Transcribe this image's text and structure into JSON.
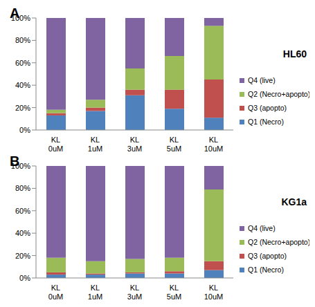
{
  "chart_data": [
    {
      "type": "bar",
      "stacked": true,
      "panel_label": "A",
      "title": "HL60",
      "grid": false,
      "legend": "right",
      "categories": [
        "KL 0uM",
        "KL 1uM",
        "KL 3uM",
        "KL 5uM",
        "KL 10uM"
      ],
      "ylim": [
        0,
        100
      ],
      "yticks": [
        {
          "value": 0,
          "label": "0%"
        },
        {
          "value": 20,
          "label": "20%"
        },
        {
          "value": 40,
          "label": "40%"
        },
        {
          "value": 60,
          "label": "60%"
        },
        {
          "value": 80,
          "label": "80%"
        },
        {
          "value": 100,
          "label": "100%"
        }
      ],
      "series": [
        {
          "name": "Q1 (Necro)",
          "color": "#4f81bd",
          "values": [
            13,
            17,
            31,
            19,
            11
          ]
        },
        {
          "name": "Q3 (apopto)",
          "color": "#c0504d",
          "values": [
            2,
            3,
            5,
            17,
            34
          ]
        },
        {
          "name": "Q2 (Necro+apopto)",
          "color": "#9bbb59",
          "values": [
            3,
            7,
            19,
            30,
            48
          ]
        },
        {
          "name": "Q4 (live)",
          "color": "#8064a2",
          "values": [
            82,
            73,
            45,
            34,
            7
          ]
        }
      ]
    },
    {
      "type": "bar",
      "stacked": true,
      "panel_label": "B",
      "title": "KG1a",
      "grid": false,
      "legend": "right",
      "categories": [
        "KL 0uM",
        "KL 1uM",
        "KL 3uM",
        "KL 5uM",
        "KL 10uM"
      ],
      "ylim": [
        0,
        100
      ],
      "yticks": [
        {
          "value": 0,
          "label": "0%"
        },
        {
          "value": 20,
          "label": "20%"
        },
        {
          "value": 40,
          "label": "40%"
        },
        {
          "value": 60,
          "label": "60%"
        },
        {
          "value": 80,
          "label": "80%"
        },
        {
          "value": 100,
          "label": "100%"
        }
      ],
      "series": [
        {
          "name": "Q1 (Necro)",
          "color": "#4f81bd",
          "values": [
            3,
            3,
            4,
            4,
            7
          ]
        },
        {
          "name": "Q3 (apopto)",
          "color": "#c0504d",
          "values": [
            2,
            1,
            1,
            2,
            8
          ]
        },
        {
          "name": "Q2 (Necro+apopto)",
          "color": "#9bbb59",
          "values": [
            13,
            11,
            12,
            12,
            64
          ]
        },
        {
          "name": "Q4 (live)",
          "color": "#8064a2",
          "values": [
            82,
            85,
            83,
            82,
            21
          ]
        }
      ]
    }
  ]
}
